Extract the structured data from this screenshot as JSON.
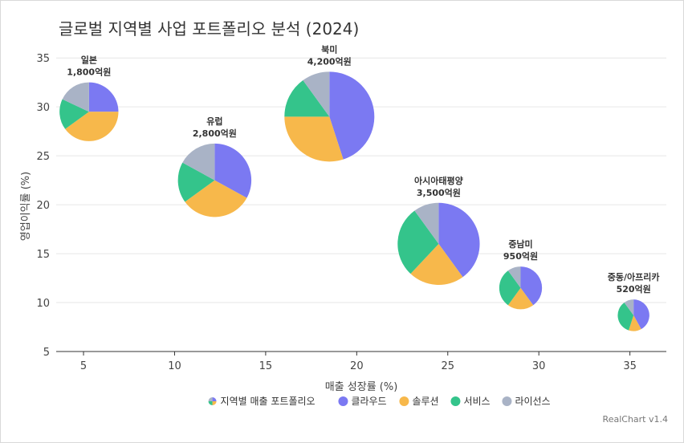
{
  "title": "글로벌 지역별 사업 포트폴리오 분석 (2024)",
  "credit": "RealChart v1.4",
  "chart_data": {
    "type": "scatter",
    "subtype": "bubble-pie",
    "title": "글로벌 지역별 사업 포트폴리오 분석 (2024)",
    "xlabel": "매출 성장률 (%)",
    "ylabel": "영업이익률 (%)",
    "xlim": [
      3.5,
      37
    ],
    "ylim": [
      5,
      36
    ],
    "xticks": [
      5,
      10,
      15,
      20,
      25,
      30,
      35
    ],
    "yticks": [
      5,
      10,
      15,
      20,
      25,
      30,
      35
    ],
    "grid": "horizontal",
    "legend_position": "bottom",
    "legend_title": "지역별 매출 포트폴리오",
    "segments": [
      {
        "name": "클라우드",
        "color": "#7b79f2"
      },
      {
        "name": "솔루션",
        "color": "#f7b84b"
      },
      {
        "name": "서비스",
        "color": "#34c48b"
      },
      {
        "name": "라이선스",
        "color": "#a9b3c6"
      }
    ],
    "points": [
      {
        "region": "일본",
        "revenue_label": "1,800억원",
        "x": 5.3,
        "y": 29.5,
        "revenue": 1800,
        "shares": [
          0.25,
          0.4,
          0.17,
          0.18
        ]
      },
      {
        "region": "유럽",
        "revenue_label": "2,800억원",
        "x": 12.2,
        "y": 22.5,
        "revenue": 2800,
        "shares": [
          0.33,
          0.32,
          0.18,
          0.17
        ]
      },
      {
        "region": "북미",
        "revenue_label": "4,200억원",
        "x": 18.5,
        "y": 29.0,
        "revenue": 4200,
        "shares": [
          0.45,
          0.3,
          0.15,
          0.1
        ]
      },
      {
        "region": "아시아태평양",
        "revenue_label": "3,500억원",
        "x": 24.5,
        "y": 16.0,
        "revenue": 3500,
        "shares": [
          0.4,
          0.22,
          0.28,
          0.1
        ]
      },
      {
        "region": "중남미",
        "revenue_label": "950억원",
        "x": 29.0,
        "y": 11.5,
        "revenue": 950,
        "shares": [
          0.4,
          0.2,
          0.3,
          0.1
        ]
      },
      {
        "region": "중동/아프리카",
        "revenue_label": "520억원",
        "x": 35.2,
        "y": 8.7,
        "revenue": 520,
        "shares": [
          0.42,
          0.13,
          0.35,
          0.1
        ]
      }
    ]
  }
}
